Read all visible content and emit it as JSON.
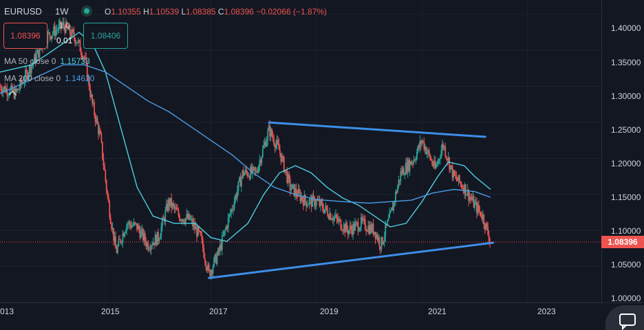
{
  "header": {
    "symbol": "EURUSD",
    "interval": "1W",
    "ohlc": {
      "o_label": "O",
      "o_value": "1.10355",
      "h_label": "H",
      "h_value": "1.10539",
      "l_label": "L",
      "l_value": "1.08385",
      "c_label": "C",
      "c_value": "1.08396",
      "change": "−0.02066 (−1.87%)"
    }
  },
  "trade": {
    "sell_price": "1.08396",
    "buy_price": "1.08406",
    "quantity_top": "1.0",
    "quantity": "0.01"
  },
  "indicators": [
    {
      "name": "MA 50 close 0",
      "value": "1.15733",
      "color": "#4dd0e1"
    },
    {
      "name": "MA 200 close 0",
      "value": "1.14620",
      "color": "#4a9ee8"
    }
  ],
  "collapse_icon": "chevron-up-icon",
  "price_axis": {
    "ticks": [
      "1.40000",
      "1.35000",
      "1.30000",
      "1.25000",
      "1.20000",
      "1.15000",
      "1.10000",
      "1.05000",
      "1.00000"
    ],
    "current_price": "1.08396",
    "current_price_color": "#ef5350"
  },
  "time_axis": {
    "ticks": [
      "013",
      "2015",
      "2017",
      "2019",
      "2021",
      "2023"
    ]
  },
  "chat_icon": "chat-bubble-icon",
  "chart_data": {
    "type": "candlestick",
    "title": "EURUSD",
    "interval": "1W",
    "ylim": [
      1.0,
      1.42
    ],
    "xlim": [
      2013.0,
      2024.4
    ],
    "up_color": "#26a69a",
    "down_color": "#ef5350",
    "price_path": [
      [
        2013.0,
        1.3
      ],
      [
        2013.3,
        1.29
      ],
      [
        2013.6,
        1.33
      ],
      [
        2013.9,
        1.37
      ],
      [
        2014.2,
        1.385
      ],
      [
        2014.45,
        1.365
      ],
      [
        2014.6,
        1.34
      ],
      [
        2014.75,
        1.275
      ],
      [
        2014.9,
        1.23
      ],
      [
        2015.05,
        1.14
      ],
      [
        2015.2,
        1.07
      ],
      [
        2015.4,
        1.11
      ],
      [
        2015.6,
        1.105
      ],
      [
        2015.8,
        1.08
      ],
      [
        2016.0,
        1.09
      ],
      [
        2016.2,
        1.14
      ],
      [
        2016.4,
        1.12
      ],
      [
        2016.6,
        1.115
      ],
      [
        2016.8,
        1.09
      ],
      [
        2016.96,
        1.04
      ],
      [
        2017.15,
        1.07
      ],
      [
        2017.35,
        1.12
      ],
      [
        2017.6,
        1.18
      ],
      [
        2017.85,
        1.18
      ],
      [
        2018.1,
        1.24
      ],
      [
        2018.3,
        1.21
      ],
      [
        2018.5,
        1.16
      ],
      [
        2018.8,
        1.14
      ],
      [
        2019.0,
        1.14
      ],
      [
        2019.3,
        1.12
      ],
      [
        2019.6,
        1.1
      ],
      [
        2019.85,
        1.11
      ],
      [
        2020.1,
        1.1
      ],
      [
        2020.22,
        1.08
      ],
      [
        2020.4,
        1.12
      ],
      [
        2020.6,
        1.18
      ],
      [
        2020.85,
        1.2
      ],
      [
        2021.0,
        1.225
      ],
      [
        2021.25,
        1.185
      ],
      [
        2021.4,
        1.22
      ],
      [
        2021.6,
        1.175
      ],
      [
        2021.8,
        1.16
      ],
      [
        2022.0,
        1.135
      ],
      [
        2022.15,
        1.12
      ],
      [
        2022.3,
        1.084
      ]
    ],
    "series": [
      {
        "name": "MA 50 close 0",
        "color": "#4dd0e1",
        "points": [
          [
            2013.0,
            1.32
          ],
          [
            2013.6,
            1.33
          ],
          [
            2014.2,
            1.36
          ],
          [
            2014.5,
            1.375
          ],
          [
            2014.75,
            1.36
          ],
          [
            2015.0,
            1.32
          ],
          [
            2015.3,
            1.24
          ],
          [
            2015.6,
            1.16
          ],
          [
            2015.9,
            1.12
          ],
          [
            2016.3,
            1.11
          ],
          [
            2016.7,
            1.11
          ],
          [
            2017.0,
            1.09
          ],
          [
            2017.3,
            1.085
          ],
          [
            2017.7,
            1.11
          ],
          [
            2018.0,
            1.15
          ],
          [
            2018.3,
            1.18
          ],
          [
            2018.6,
            1.19
          ],
          [
            2018.9,
            1.18
          ],
          [
            2019.2,
            1.16
          ],
          [
            2019.5,
            1.145
          ],
          [
            2019.8,
            1.135
          ],
          [
            2020.1,
            1.12
          ],
          [
            2020.4,
            1.105
          ],
          [
            2020.7,
            1.11
          ],
          [
            2021.0,
            1.14
          ],
          [
            2021.3,
            1.175
          ],
          [
            2021.5,
            1.195
          ],
          [
            2021.8,
            1.19
          ],
          [
            2022.0,
            1.175
          ],
          [
            2022.3,
            1.157
          ]
        ]
      },
      {
        "name": "MA 200 close 0",
        "color": "#4a9ee8",
        "points": [
          [
            2013.0,
            1.29
          ],
          [
            2013.6,
            1.31
          ],
          [
            2014.2,
            1.33
          ],
          [
            2014.6,
            1.33
          ],
          [
            2015.0,
            1.32
          ],
          [
            2015.4,
            1.3
          ],
          [
            2015.8,
            1.28
          ],
          [
            2016.2,
            1.265
          ],
          [
            2016.6,
            1.245
          ],
          [
            2017.0,
            1.225
          ],
          [
            2017.4,
            1.205
          ],
          [
            2017.8,
            1.18
          ],
          [
            2018.2,
            1.16
          ],
          [
            2018.6,
            1.15
          ],
          [
            2019.0,
            1.143
          ],
          [
            2019.5,
            1.14
          ],
          [
            2020.0,
            1.138
          ],
          [
            2020.4,
            1.14
          ],
          [
            2020.8,
            1.142
          ],
          [
            2021.2,
            1.152
          ],
          [
            2021.6,
            1.157
          ],
          [
            2022.0,
            1.154
          ],
          [
            2022.3,
            1.146
          ]
        ]
      }
    ],
    "trendlines": [
      {
        "color": "#3d8fe8",
        "from": [
          2018.1,
          1.25
        ],
        "to": [
          2022.2,
          1.23
        ]
      },
      {
        "color": "#3d8fe8",
        "from": [
          2016.96,
          1.034
        ],
        "to": [
          2022.35,
          1.083
        ]
      }
    ],
    "current_price_line": 1.08396
  }
}
